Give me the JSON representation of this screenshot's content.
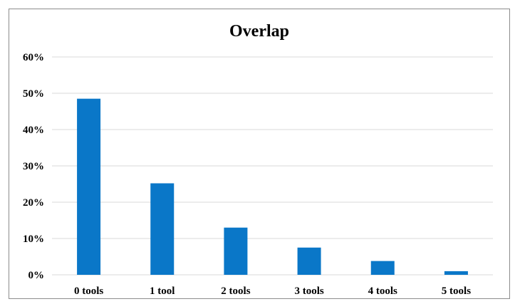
{
  "chart_data": {
    "type": "bar",
    "title": "Overlap",
    "xlabel": "",
    "ylabel": "",
    "categories": [
      "0 tools",
      "1 tool",
      "2 tools",
      "3 tools",
      "4 tools",
      "5 tools"
    ],
    "values": [
      48.5,
      25.2,
      13.0,
      7.5,
      3.8,
      1.0
    ],
    "ylim": [
      0,
      60
    ],
    "y_ticks": [
      0,
      10,
      20,
      30,
      40,
      50,
      60
    ],
    "y_tick_labels": [
      "0%",
      "10%",
      "20%",
      "30%",
      "40%",
      "50%",
      "60%"
    ],
    "grid": true,
    "legend": "none",
    "colors": {
      "bar": "#0a77c8",
      "grid": "#d9d9d9",
      "text": "#000000",
      "frame": "#8c8c8c"
    }
  }
}
